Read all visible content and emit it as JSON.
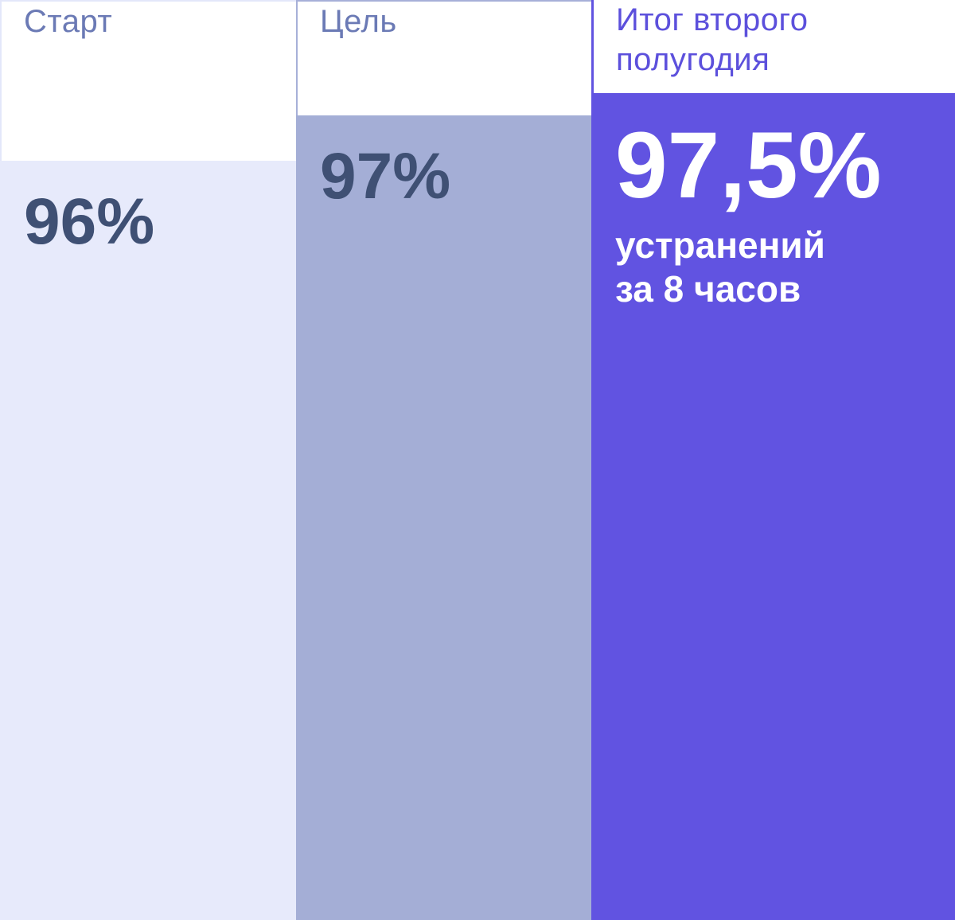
{
  "chart_data": {
    "type": "bar",
    "title": "",
    "categories": [
      "Старт",
      "Цель",
      "Итог второго полугодия"
    ],
    "values": [
      96,
      97,
      97.5
    ],
    "value_labels": [
      "96%",
      "97%",
      "97,5%"
    ],
    "annotation": "устранений за 8 часов",
    "unit": "%",
    "layout_hints": {
      "orientation": "vertical",
      "baseline_not_zero": true,
      "bars_cropped_at_bottom": true,
      "legend": "none",
      "axes": "none"
    },
    "colors": {
      "bar_start": "#E7EAFB",
      "bar_goal": "#A4AED6",
      "bar_result": "#6153E1",
      "category_label": "#6B7AB5",
      "category_label_result": "#5C50DC",
      "value_text": "#3F5074",
      "value_text_result": "#FFFFFF",
      "header_background": "#FFFFFF"
    }
  },
  "columns": [
    {
      "label": "Старт",
      "value": "96%"
    },
    {
      "label": "Цель",
      "value": "97%"
    },
    {
      "label": "Итог второго полугодия",
      "value": "97,5%",
      "sublabel": "устранений за 8 часов"
    }
  ]
}
